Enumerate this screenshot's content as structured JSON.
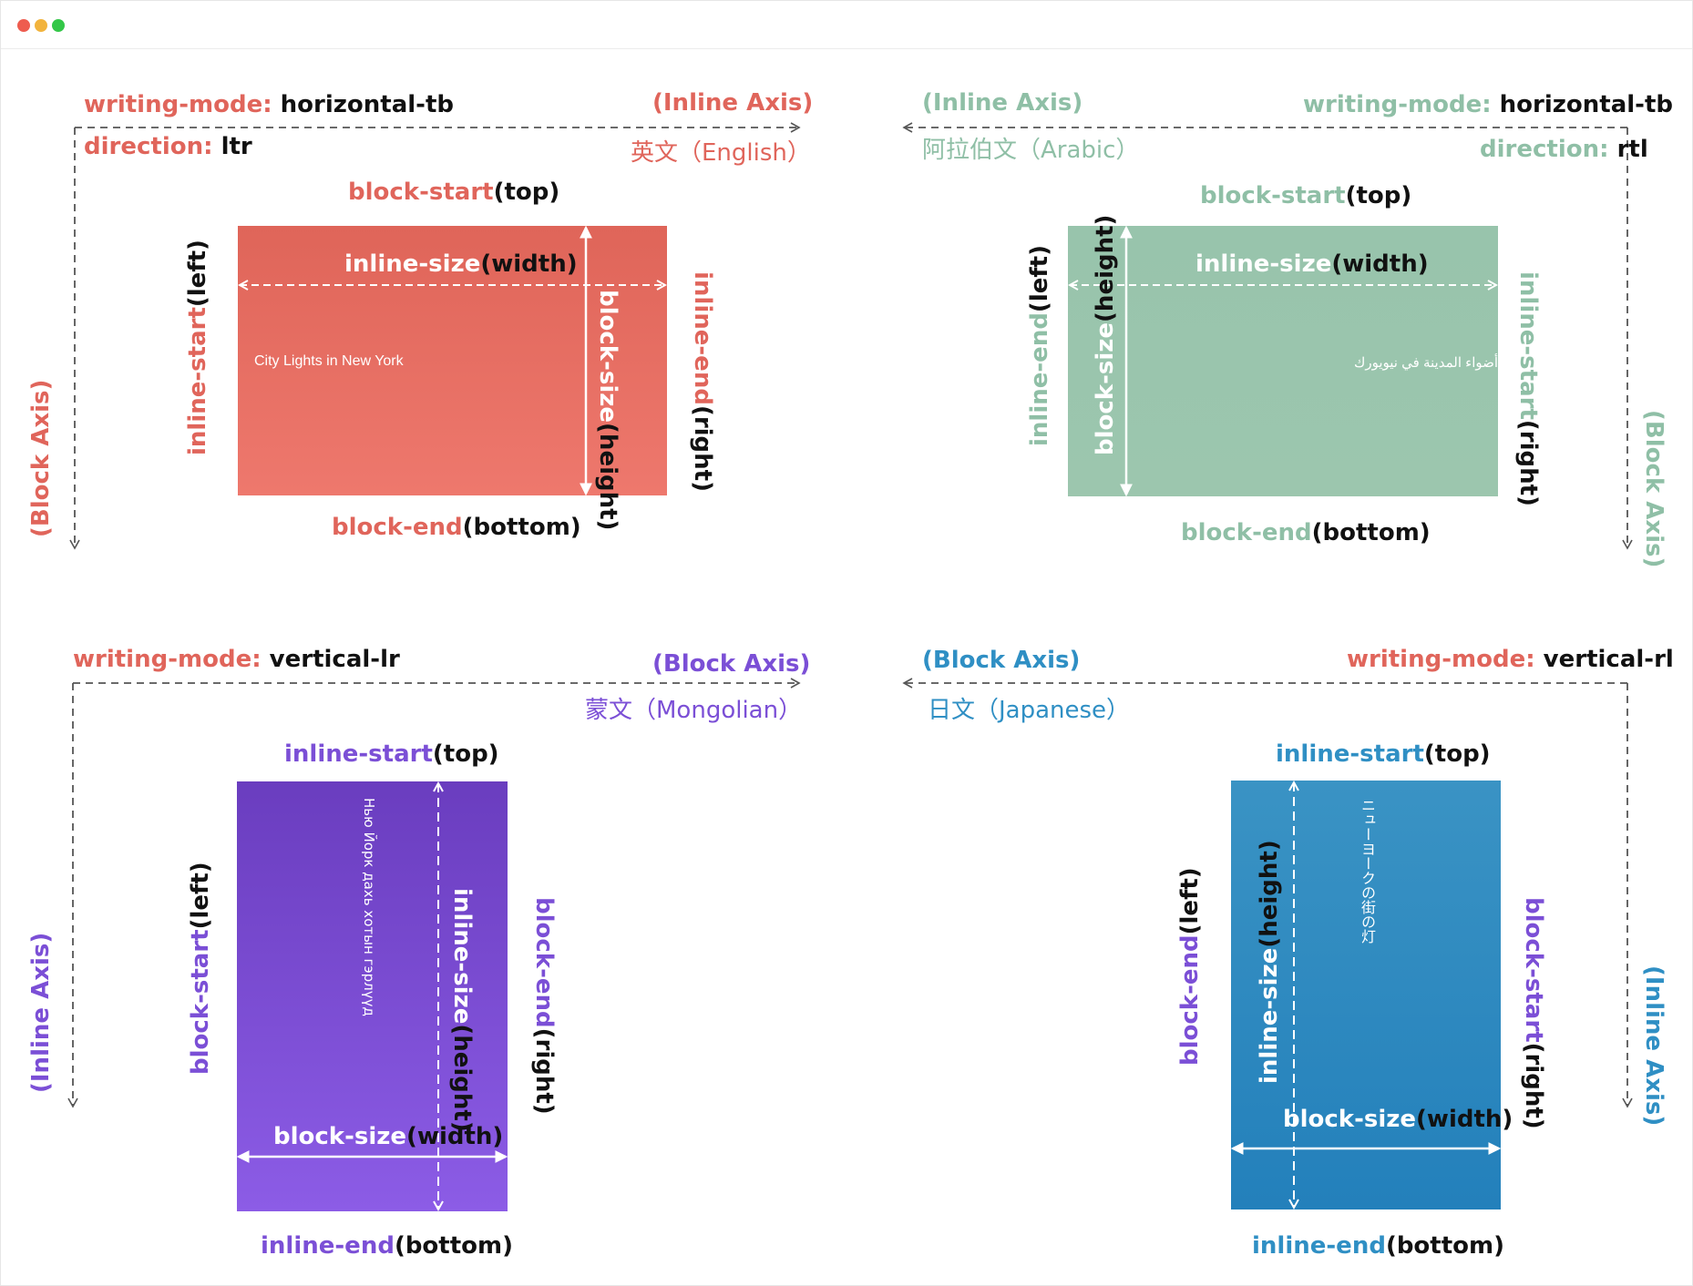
{
  "colors": {
    "english": "#e0655b",
    "arabic": "#8fbfa6",
    "mongolian": "#7b4fd6",
    "japanese": "#2f8fc4",
    "axis_line": "#555555"
  },
  "panels": {
    "english": {
      "writing_mode_key": "writing-mode:",
      "writing_mode_val": "horizontal-tb",
      "direction_key": "direction:",
      "direction_val": "ltr",
      "inline_axis": "(Inline Axis)",
      "block_axis": "(Block Axis)",
      "language": "英文（English）",
      "top_label": "block-start",
      "top_paren": "(top)",
      "bottom_label": "block-end",
      "bottom_paren": "(bottom)",
      "left_label": "inline-start",
      "left_paren": "(left)",
      "right_label": "inline-end",
      "right_paren": "(right)",
      "width_label": "inline-size",
      "width_paren": "(width)",
      "height_label": "block-size",
      "height_paren": "(height)",
      "sample_text": "City Lights in New York"
    },
    "arabic": {
      "writing_mode_key": "writing-mode:",
      "writing_mode_val": "horizontal-tb",
      "direction_key": "direction:",
      "direction_val": "rtl",
      "inline_axis": "(Inline Axis)",
      "block_axis": "(Block Axis)",
      "language": "阿拉伯文（Arabic）",
      "top_label": "block-start",
      "top_paren": "(top)",
      "bottom_label": "block-end",
      "bottom_paren": "(bottom)",
      "left_label": "inline-end",
      "left_paren": "(left)",
      "right_label": "inline-start",
      "right_paren": "(right)",
      "width_label": "inline-size",
      "width_paren": "(width)",
      "height_label": "block-size",
      "height_paren": "(height)",
      "sample_text": "أضواء المدينة في نيويورك"
    },
    "mongolian": {
      "writing_mode_key": "writing-mode:",
      "writing_mode_val": "vertical-lr",
      "block_axis": "(Block Axis)",
      "inline_axis": "(Inline Axis)",
      "language": "蒙文（Mongolian）",
      "top_label": "inline-start",
      "top_paren": "(top)",
      "bottom_label": "inline-end",
      "bottom_paren": "(bottom)",
      "left_label": "block-start",
      "left_paren": "(left)",
      "right_label": "block-end",
      "right_paren": "(right)",
      "width_label": "block-size",
      "width_paren": "(width)",
      "height_label": "inline-size",
      "height_paren": "(height)",
      "sample_text": "Нью Йорк дахь хотын гэрлүүд"
    },
    "japanese": {
      "writing_mode_key": "writing-mode:",
      "writing_mode_val": "vertical-rl",
      "block_axis": "(Block Axis)",
      "inline_axis": "(Inline Axis)",
      "language": "日文（Japanese）",
      "top_label": "inline-start",
      "top_paren": "(top)",
      "bottom_label": "inline-end",
      "bottom_paren": "(bottom)",
      "left_label": "block-end",
      "left_paren": "(left)",
      "right_label": "block-start",
      "right_paren": "(right)",
      "width_label": "block-size",
      "width_paren": "(width)",
      "height_label": "inline-size",
      "height_paren": "(height)",
      "sample_text": "ニューヨークの街の灯"
    }
  }
}
